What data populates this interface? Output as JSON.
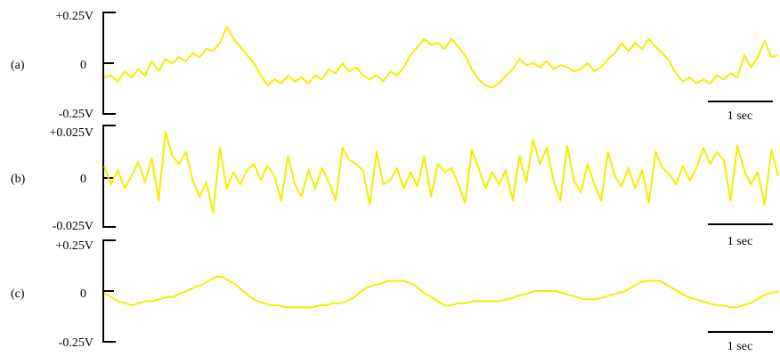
{
  "chart_data": [
    {
      "type": "line",
      "panel_label": "(a)",
      "tick_labels": {
        "top": "+0.25V",
        "mid": "0",
        "bottom": "-0.25V"
      },
      "ylim": [
        -0.25,
        0.25
      ],
      "y_unit": "V",
      "scale_bar": "1 sec",
      "series": [
        {
          "values": [
            -0.07,
            -0.06,
            -0.09,
            -0.04,
            -0.07,
            -0.03,
            -0.06,
            0.01,
            -0.04,
            0.02,
            0.0,
            0.03,
            0.01,
            0.05,
            0.03,
            0.07,
            0.06,
            0.1,
            0.18,
            0.12,
            0.08,
            0.04,
            0.0,
            -0.06,
            -0.11,
            -0.08,
            -0.1,
            -0.06,
            -0.09,
            -0.07,
            -0.1,
            -0.06,
            -0.08,
            -0.03,
            -0.05,
            0.0,
            -0.04,
            -0.02,
            -0.06,
            -0.08,
            -0.06,
            -0.09,
            -0.04,
            -0.06,
            -0.02,
            0.04,
            0.08,
            0.12,
            0.09,
            0.1,
            0.07,
            0.12,
            0.08,
            0.04,
            -0.03,
            -0.08,
            -0.11,
            -0.12,
            -0.1,
            -0.06,
            -0.03,
            0.02,
            -0.01,
            0.0,
            -0.02,
            0.01,
            -0.03,
            -0.01,
            -0.02,
            -0.04,
            -0.03,
            0.0,
            -0.04,
            -0.02,
            0.02,
            0.05,
            0.1,
            0.06,
            0.1,
            0.07,
            0.12,
            0.08,
            0.05,
            0.01,
            -0.05,
            -0.09,
            -0.07,
            -0.1,
            -0.08,
            -0.1,
            -0.06,
            -0.08,
            -0.05,
            -0.07,
            0.04,
            -0.02,
            0.03,
            0.11,
            0.03,
            0.04
          ]
        }
      ]
    },
    {
      "type": "line",
      "panel_label": "(b)",
      "tick_labels": {
        "top": "+0.025V",
        "mid": "0",
        "bottom": "-0.025V"
      },
      "ylim": [
        -0.025,
        0.025
      ],
      "y_unit": "V",
      "scale_bar": "1 sec",
      "series": [
        {
          "values": [
            0.005,
            -0.004,
            0.003,
            -0.006,
            0.0,
            0.007,
            -0.003,
            0.009,
            -0.012,
            0.022,
            0.01,
            0.006,
            0.012,
            -0.002,
            -0.01,
            -0.003,
            -0.018,
            0.014,
            -0.006,
            0.002,
            -0.004,
            0.003,
            0.006,
            -0.002,
            0.005,
            0.0,
            -0.012,
            0.01,
            -0.004,
            -0.01,
            0.003,
            -0.006,
            0.004,
            -0.003,
            -0.012,
            0.014,
            0.008,
            0.006,
            0.003,
            -0.014,
            0.012,
            -0.004,
            -0.002,
            0.004,
            -0.006,
            0.002,
            -0.005,
            0.01,
            -0.01,
            0.006,
            0.002,
            0.004,
            -0.004,
            -0.013,
            0.013,
            0.004,
            -0.006,
            0.002,
            -0.004,
            0.003,
            -0.012,
            0.01,
            -0.003,
            0.018,
            0.006,
            0.014,
            -0.002,
            -0.012,
            0.015,
            -0.002,
            -0.008,
            0.006,
            -0.004,
            -0.012,
            0.012,
            0.0,
            -0.005,
            0.004,
            -0.006,
            0.003,
            -0.013,
            0.012,
            0.004,
            0.001,
            -0.004,
            0.005,
            -0.002,
            0.004,
            0.014,
            0.006,
            0.012,
            0.008,
            -0.012,
            0.015,
            0.003,
            -0.004,
            0.002,
            -0.014,
            0.013,
            0.0
          ]
        }
      ]
    },
    {
      "type": "line",
      "panel_label": "(c)",
      "tick_labels": {
        "top": "+0.25V",
        "mid": "0",
        "bottom": "-0.25V"
      },
      "ylim": [
        -0.25,
        0.25
      ],
      "y_unit": "V",
      "scale_bar": "1 sec",
      "series": [
        {
          "values": [
            -0.01,
            -0.03,
            -0.05,
            -0.06,
            -0.07,
            -0.06,
            -0.05,
            -0.05,
            -0.04,
            -0.03,
            -0.03,
            -0.01,
            0.0,
            0.02,
            0.03,
            0.05,
            0.07,
            0.07,
            0.05,
            0.03,
            0.0,
            -0.03,
            -0.05,
            -0.06,
            -0.07,
            -0.07,
            -0.08,
            -0.08,
            -0.08,
            -0.08,
            -0.08,
            -0.07,
            -0.07,
            -0.06,
            -0.06,
            -0.05,
            -0.03,
            0.0,
            0.02,
            0.03,
            0.04,
            0.05,
            0.05,
            0.05,
            0.04,
            0.02,
            -0.01,
            -0.03,
            -0.05,
            -0.07,
            -0.07,
            -0.06,
            -0.06,
            -0.05,
            -0.05,
            -0.05,
            -0.05,
            -0.05,
            -0.04,
            -0.03,
            -0.02,
            -0.01,
            0.0,
            0.0,
            0.0,
            0.0,
            -0.01,
            -0.02,
            -0.03,
            -0.04,
            -0.04,
            -0.04,
            -0.03,
            -0.02,
            -0.01,
            0.0,
            0.02,
            0.04,
            0.05,
            0.05,
            0.05,
            0.03,
            0.01,
            -0.01,
            -0.03,
            -0.04,
            -0.05,
            -0.06,
            -0.07,
            -0.07,
            -0.08,
            -0.08,
            -0.07,
            -0.06,
            -0.04,
            -0.02,
            -0.01,
            0.0
          ]
        }
      ]
    }
  ],
  "colors": {
    "trace": "#f2ee00",
    "axis": "#000000"
  }
}
